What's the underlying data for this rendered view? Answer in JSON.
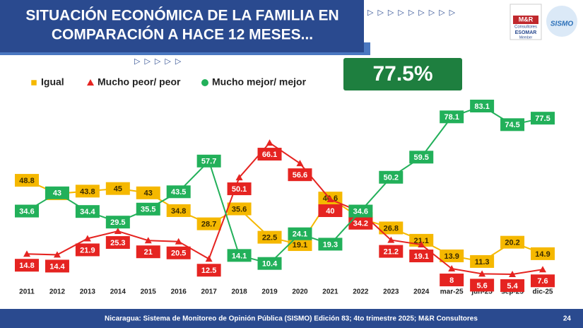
{
  "chart_data": {
    "type": "line",
    "title_lines": [
      "SITUACIÓN ECONÓMICA DE LA FAMILIA EN",
      "COMPARACIÓN A HACE 12 MESES..."
    ],
    "highlight": "77.5%",
    "categories": [
      "2011",
      "2012",
      "2013",
      "2014",
      "2015",
      "2016",
      "2017",
      "2018",
      "2019",
      "2020",
      "2021",
      "2022",
      "2023",
      "2024",
      "mar-25",
      "jun-25",
      "sep-25",
      "dic-25"
    ],
    "series": [
      {
        "name": "Igual",
        "color": "#f5b800",
        "marker": "square",
        "values": [
          48.8,
          42.6,
          43.8,
          45.0,
          43.0,
          34.8,
          28.7,
          35.6,
          22.5,
          19.1,
          40.6,
          31.2,
          26.8,
          21.1,
          13.9,
          11.3,
          20.2,
          14.9
        ]
      },
      {
        "name": "Mucho peor/ peor",
        "color": "#e52421",
        "marker": "triangle",
        "values": [
          14.8,
          14.4,
          21.9,
          25.3,
          21.0,
          20.5,
          12.5,
          50.1,
          66.1,
          56.6,
          40.0,
          34.2,
          21.2,
          19.1,
          8.0,
          5.6,
          5.4,
          7.6
        ]
      },
      {
        "name": "Mucho mejor/ mejor",
        "color": "#22b05a",
        "marker": "circle",
        "values": [
          34.6,
          43.0,
          34.4,
          29.5,
          35.5,
          43.5,
          57.7,
          14.1,
          10.4,
          24.1,
          19.3,
          34.6,
          50.2,
          59.5,
          78.1,
          83.1,
          74.5,
          77.5
        ]
      }
    ]
  },
  "footer": {
    "source": "Nicaragua: Sistema de Monitoreo de Opinión Pública (SISMO) Edición 83; 4to trimestre 2025; M&R Consultores",
    "page": "24"
  },
  "logos": {
    "mr": "M&R",
    "mr_sub": "Consultores",
    "esomar": "ESOMAR",
    "member": "Member",
    "sismo": "SISMO"
  }
}
